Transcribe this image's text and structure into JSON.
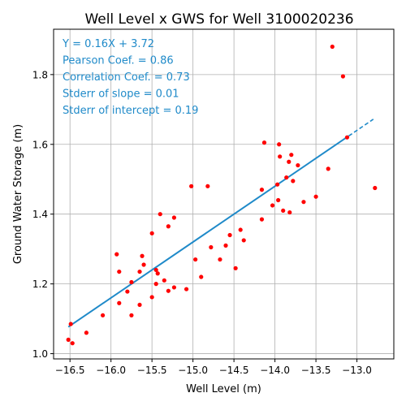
{
  "chart_data": {
    "type": "scatter",
    "title": "Well Level x GWS for Well 3100020236",
    "xlabel": "Well Level (m)",
    "ylabel": "Ground Water Storage (m)",
    "xlim": [
      -16.7,
      -12.55
    ],
    "ylim": [
      0.985,
      1.93
    ],
    "xticks": [
      -16.5,
      -16.0,
      -15.5,
      -15.0,
      -14.5,
      -14.0,
      -13.5,
      -13.0
    ],
    "xtick_labels": [
      "−16.5",
      "−16.0",
      "−15.5",
      "−15.0",
      "−14.5",
      "−14.0",
      "−13.5",
      "−13.0"
    ],
    "yticks": [
      1.0,
      1.2,
      1.4,
      1.6,
      1.8
    ],
    "ytick_labels": [
      "1.0",
      "1.2",
      "1.4",
      "1.6",
      "1.8"
    ],
    "grid": true,
    "point_color": "#ff0000",
    "fit_color": "#1f8ac9",
    "annotation_color": "#1f8ac9",
    "fit": {
      "slope": 0.16,
      "intercept": 3.72,
      "x_start": -16.52,
      "x_end": -12.8
    },
    "annotations": [
      "Y = 0.16X + 3.72",
      "Pearson Coef. = 0.86",
      "Correlation Coef. = 0.73",
      "Stderr of slope = 0.01",
      "Stderr of intercept = 0.19"
    ],
    "series": [
      {
        "name": "observations",
        "points": [
          [
            -16.52,
            1.04
          ],
          [
            -16.49,
            1.085
          ],
          [
            -16.47,
            1.03
          ],
          [
            -16.3,
            1.06
          ],
          [
            -16.1,
            1.11
          ],
          [
            -15.93,
            1.285
          ],
          [
            -15.9,
            1.235
          ],
          [
            -15.9,
            1.145
          ],
          [
            -15.8,
            1.178
          ],
          [
            -15.75,
            1.205
          ],
          [
            -15.75,
            1.11
          ],
          [
            -15.65,
            1.14
          ],
          [
            -15.65,
            1.235
          ],
          [
            -15.62,
            1.28
          ],
          [
            -15.6,
            1.255
          ],
          [
            -15.5,
            1.345
          ],
          [
            -15.5,
            1.162
          ],
          [
            -15.45,
            1.24
          ],
          [
            -15.45,
            1.2
          ],
          [
            -15.43,
            1.23
          ],
          [
            -15.4,
            1.4
          ],
          [
            -15.35,
            1.21
          ],
          [
            -15.3,
            1.365
          ],
          [
            -15.3,
            1.18
          ],
          [
            -15.23,
            1.19
          ],
          [
            -15.23,
            1.39
          ],
          [
            -15.08,
            1.185
          ],
          [
            -15.02,
            1.48
          ],
          [
            -14.97,
            1.27
          ],
          [
            -14.9,
            1.22
          ],
          [
            -14.82,
            1.48
          ],
          [
            -14.78,
            1.305
          ],
          [
            -14.67,
            1.27
          ],
          [
            -14.6,
            1.31
          ],
          [
            -14.55,
            1.34
          ],
          [
            -14.48,
            1.245
          ],
          [
            -14.42,
            1.355
          ],
          [
            -14.38,
            1.325
          ],
          [
            -14.16,
            1.47
          ],
          [
            -14.16,
            1.385
          ],
          [
            -14.13,
            1.605
          ],
          [
            -14.03,
            1.425
          ],
          [
            -13.97,
            1.485
          ],
          [
            -13.96,
            1.44
          ],
          [
            -13.95,
            1.6
          ],
          [
            -13.94,
            1.565
          ],
          [
            -13.9,
            1.41
          ],
          [
            -13.86,
            1.505
          ],
          [
            -13.83,
            1.55
          ],
          [
            -13.82,
            1.405
          ],
          [
            -13.8,
            1.57
          ],
          [
            -13.78,
            1.495
          ],
          [
            -13.72,
            1.54
          ],
          [
            -13.65,
            1.435
          ],
          [
            -13.5,
            1.45
          ],
          [
            -13.35,
            1.53
          ],
          [
            -13.3,
            1.88
          ],
          [
            -13.17,
            1.795
          ],
          [
            -13.12,
            1.62
          ],
          [
            -12.78,
            1.475
          ]
        ]
      }
    ]
  }
}
